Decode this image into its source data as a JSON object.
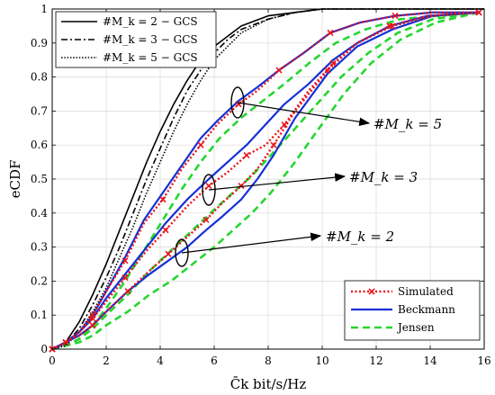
{
  "chart_data": {
    "type": "line",
    "xlabel": "C̄k bit/s/Hz",
    "ylabel": "eCDF",
    "xlim": [
      0,
      16
    ],
    "ylim": [
      0,
      1
    ],
    "xticks": [
      "0",
      "2",
      "4",
      "6",
      "8",
      "10",
      "12",
      "14",
      "16"
    ],
    "yticks": [
      "0",
      "0.1",
      "0.2",
      "0.3",
      "0.4",
      "0.5",
      "0.6",
      "0.7",
      "0.8",
      "0.9",
      "1"
    ],
    "grid": true,
    "legend_top_left": [
      {
        "label": "#M_k = 2 − GCS",
        "style": "solid",
        "color": "#000000"
      },
      {
        "label": "#M_k = 3 − GCS",
        "style": "dashdot",
        "color": "#000000"
      },
      {
        "label": "#M_k = 5 − GCS",
        "style": "dotted",
        "color": "#000000"
      }
    ],
    "legend_bottom_right": [
      {
        "label": "Simulated",
        "style": "dotted-x",
        "color": "#e8141a"
      },
      {
        "label": "Beckmann",
        "style": "solid",
        "color": "#1531d6"
      },
      {
        "label": "Jensen",
        "style": "dashed",
        "color": "#25d62f"
      }
    ],
    "annotations": [
      {
        "text": "#M_k = 5",
        "point": [
          6.9,
          0.72
        ]
      },
      {
        "text": "#M_k = 3",
        "point": [
          5.8,
          0.47
        ]
      },
      {
        "text": "#M_k = 2",
        "point": [
          4.8,
          0.28
        ]
      }
    ],
    "series": [
      {
        "name": "#M_k = 2 − GCS",
        "style": "solid",
        "color": "#000000",
        "x": [
          0,
          0.5,
          1,
          1.5,
          2,
          2.5,
          3,
          3.5,
          4,
          4.5,
          5,
          5.5,
          6,
          6.5,
          7,
          8,
          9,
          10,
          11,
          12,
          13,
          16
        ],
        "y": [
          0,
          0.02,
          0.08,
          0.16,
          0.25,
          0.35,
          0.45,
          0.55,
          0.64,
          0.72,
          0.79,
          0.85,
          0.89,
          0.92,
          0.95,
          0.98,
          0.99,
          1.0,
          1.0,
          1.0,
          1.0,
          1.0
        ]
      },
      {
        "name": "#M_k = 3 − GCS",
        "style": "dashdot",
        "color": "#000000",
        "x": [
          0,
          0.5,
          1,
          1.5,
          2,
          2.5,
          3,
          3.5,
          4,
          4.5,
          5,
          5.5,
          6,
          6.5,
          7,
          8,
          9,
          10,
          11,
          12,
          16
        ],
        "y": [
          0,
          0.015,
          0.06,
          0.13,
          0.21,
          0.3,
          0.4,
          0.5,
          0.59,
          0.68,
          0.76,
          0.82,
          0.87,
          0.91,
          0.94,
          0.97,
          0.99,
          1.0,
          1.0,
          1.0,
          1.0
        ]
      },
      {
        "name": "#M_k = 5 − GCS",
        "style": "dotted",
        "color": "#000000",
        "x": [
          0,
          0.5,
          1,
          1.5,
          2,
          2.5,
          3,
          3.5,
          4,
          4.5,
          5,
          5.5,
          6,
          6.5,
          7,
          8,
          9,
          10,
          11,
          12,
          16
        ],
        "y": [
          0,
          0.01,
          0.05,
          0.11,
          0.18,
          0.27,
          0.36,
          0.46,
          0.55,
          0.64,
          0.72,
          0.79,
          0.85,
          0.89,
          0.93,
          0.97,
          0.99,
          1.0,
          1.0,
          1.0,
          1.0
        ]
      },
      {
        "name": "Simulated #M_k = 5",
        "style": "dotted-x",
        "color": "#e8141a",
        "x": [
          0,
          0.5,
          1,
          1.5,
          2,
          2.7,
          3.4,
          4.1,
          4.8,
          5.5,
          6.1,
          6.9,
          7.6,
          8.4,
          9.3,
          10.3,
          11.4,
          12.7,
          14.1,
          15.8
        ],
        "y": [
          0,
          0.02,
          0.05,
          0.1,
          0.17,
          0.26,
          0.37,
          0.44,
          0.53,
          0.6,
          0.66,
          0.72,
          0.76,
          0.82,
          0.87,
          0.93,
          0.96,
          0.98,
          0.99,
          0.99
        ]
      },
      {
        "name": "Simulated #M_k = 3",
        "style": "dotted-x",
        "color": "#e8141a",
        "x": [
          0,
          0.5,
          1,
          1.5,
          2,
          2.7,
          3.5,
          4.2,
          5,
          5.8,
          6.5,
          7.2,
          7.9,
          8.6,
          9.5,
          10.4,
          11.3,
          12.5,
          13.9,
          15.8
        ],
        "y": [
          0,
          0.02,
          0.05,
          0.09,
          0.14,
          0.21,
          0.29,
          0.35,
          0.42,
          0.48,
          0.52,
          0.57,
          0.6,
          0.66,
          0.76,
          0.84,
          0.9,
          0.95,
          0.98,
          0.99
        ]
      },
      {
        "name": "Simulated #M_k = 2",
        "style": "dotted-x",
        "color": "#e8141a",
        "x": [
          0,
          0.5,
          1,
          1.5,
          2,
          2.8,
          3.6,
          4.3,
          5,
          5.7,
          6.3,
          7.0,
          7.6,
          8.2,
          9.0,
          10.2,
          11.3,
          12.6,
          14.1,
          15.8
        ],
        "y": [
          0,
          0.02,
          0.04,
          0.07,
          0.11,
          0.17,
          0.23,
          0.28,
          0.33,
          0.38,
          0.43,
          0.48,
          0.53,
          0.6,
          0.7,
          0.82,
          0.9,
          0.95,
          0.98,
          0.99
        ]
      },
      {
        "name": "Beckmann #M_k = 5",
        "style": "solid",
        "color": "#1531d6",
        "x": [
          0,
          0.5,
          1,
          1.5,
          2,
          2.7,
          3.4,
          4.1,
          4.8,
          5.5,
          6.1,
          6.9,
          7.6,
          8.4,
          9.3,
          10.3,
          11.4,
          12.7,
          14.1,
          15.8
        ],
        "y": [
          0,
          0.02,
          0.05,
          0.1,
          0.17,
          0.27,
          0.38,
          0.46,
          0.54,
          0.62,
          0.67,
          0.73,
          0.77,
          0.82,
          0.87,
          0.93,
          0.96,
          0.98,
          0.99,
          0.99
        ]
      },
      {
        "name": "Beckmann #M_k = 3",
        "style": "solid",
        "color": "#1531d6",
        "x": [
          0,
          0.5,
          1,
          1.5,
          2,
          2.7,
          3.5,
          4.2,
          5,
          5.8,
          6.5,
          7.2,
          7.9,
          8.6,
          9.5,
          10.4,
          11.3,
          12.5,
          13.9,
          15.8
        ],
        "y": [
          0,
          0.02,
          0.05,
          0.09,
          0.15,
          0.22,
          0.3,
          0.37,
          0.44,
          0.5,
          0.55,
          0.6,
          0.66,
          0.72,
          0.78,
          0.85,
          0.9,
          0.95,
          0.98,
          0.99
        ]
      },
      {
        "name": "Beckmann #M_k = 2",
        "style": "solid",
        "color": "#1531d6",
        "x": [
          0,
          0.5,
          1,
          1.5,
          2,
          2.8,
          3.6,
          4.3,
          5,
          5.7,
          6.3,
          7.0,
          7.6,
          8.2,
          9.0,
          10.2,
          11.3,
          12.6,
          14.1,
          15.8
        ],
        "y": [
          0,
          0.02,
          0.04,
          0.07,
          0.11,
          0.17,
          0.22,
          0.26,
          0.3,
          0.35,
          0.39,
          0.44,
          0.5,
          0.57,
          0.68,
          0.81,
          0.89,
          0.94,
          0.98,
          0.99
        ]
      },
      {
        "name": "Jensen #M_k = 5",
        "style": "dashed",
        "color": "#25d62f",
        "x": [
          0,
          0.5,
          1,
          1.5,
          2,
          2.7,
          3.4,
          4.1,
          4.8,
          5.5,
          6.2,
          7.0,
          7.8,
          8.6,
          9.5,
          10.5,
          11.6,
          12.9,
          14.3,
          15.8
        ],
        "y": [
          0,
          0.01,
          0.03,
          0.07,
          0.12,
          0.2,
          0.29,
          0.38,
          0.47,
          0.55,
          0.62,
          0.68,
          0.73,
          0.78,
          0.84,
          0.9,
          0.94,
          0.97,
          0.98,
          0.99
        ]
      },
      {
        "name": "Jensen #M_k = 3",
        "style": "dashed",
        "color": "#25d62f",
        "x": [
          0,
          0.5,
          1,
          1.5,
          2,
          2.8,
          3.6,
          4.4,
          5.2,
          6.0,
          6.7,
          7.4,
          8.1,
          8.9,
          9.8,
          10.7,
          11.7,
          12.8,
          14.1,
          15.8
        ],
        "y": [
          0,
          0.01,
          0.03,
          0.06,
          0.1,
          0.16,
          0.23,
          0.29,
          0.35,
          0.41,
          0.46,
          0.51,
          0.57,
          0.64,
          0.72,
          0.8,
          0.87,
          0.93,
          0.97,
          0.99
        ]
      },
      {
        "name": "Jensen #M_k = 2",
        "style": "dashed",
        "color": "#25d62f",
        "x": [
          0,
          0.5,
          1,
          1.5,
          2,
          2.8,
          3.6,
          4.4,
          5.2,
          6.0,
          6.7,
          7.4,
          8.1,
          8.9,
          9.8,
          10.8,
          11.8,
          12.9,
          14.2,
          15.8
        ],
        "y": [
          0,
          0.01,
          0.02,
          0.04,
          0.07,
          0.11,
          0.16,
          0.2,
          0.25,
          0.3,
          0.35,
          0.4,
          0.46,
          0.54,
          0.64,
          0.75,
          0.84,
          0.91,
          0.96,
          0.99
        ]
      }
    ]
  }
}
